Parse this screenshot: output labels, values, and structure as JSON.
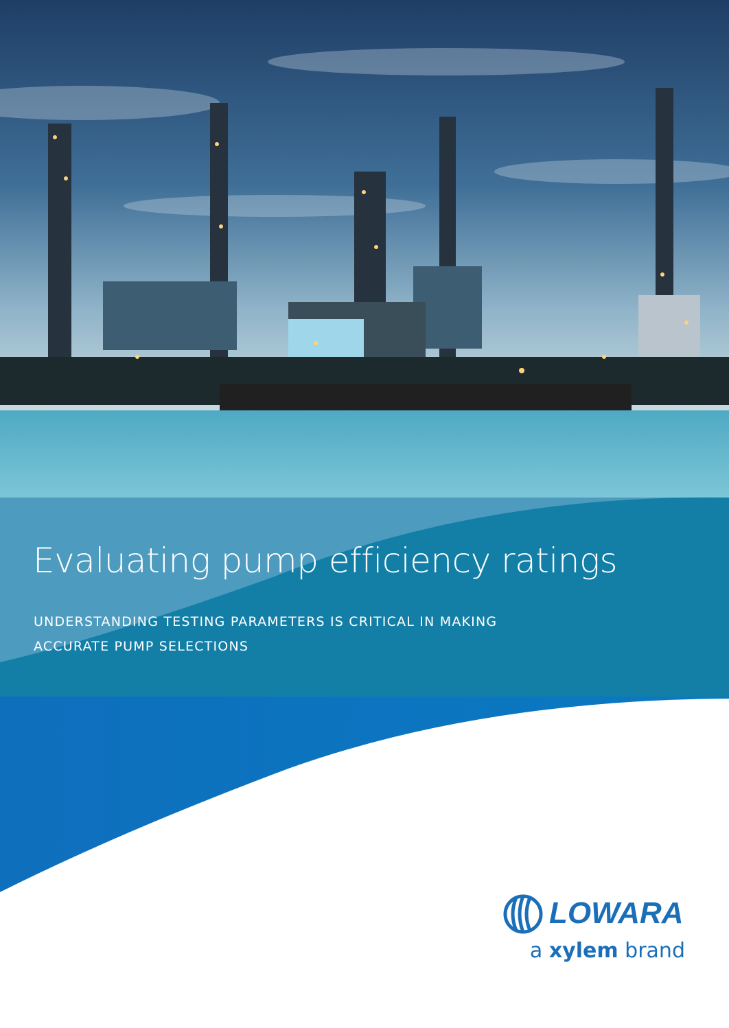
{
  "cover": {
    "title": "Evaluating pump efficiency ratings",
    "subtitle_lines": [
      "UNDERSTANDING TESTING PARAMETERS IS CRITICAL IN MAKING",
      "ACCURATE PUMP SELECTIONS"
    ],
    "logo": {
      "name": "LOWARA",
      "tagline": {
        "prefix": "a",
        "brand": "xylem",
        "suffix": "brand"
      }
    }
  }
}
